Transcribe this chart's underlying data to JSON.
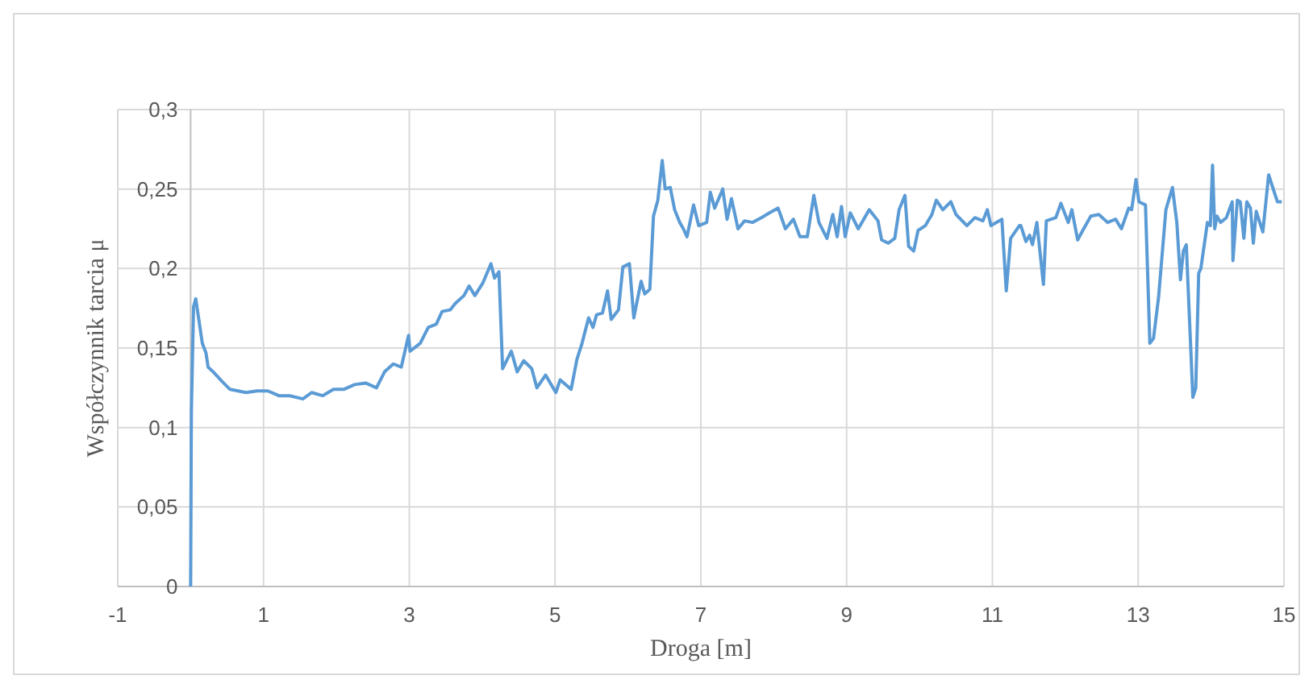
{
  "chart_data": {
    "type": "line",
    "xlabel": "Droga [m]",
    "ylabel": "Współczynnik tarcia μ",
    "xlim": [
      -1,
      15
    ],
    "xticks": [
      -1,
      1,
      3,
      5,
      7,
      9,
      11,
      13,
      15
    ],
    "ylim": [
      0,
      0.3
    ],
    "yticks": [
      {
        "value": 0,
        "label": "0"
      },
      {
        "value": 0.05,
        "label": "0,05"
      },
      {
        "value": 0.1,
        "label": "0,1"
      },
      {
        "value": 0.15,
        "label": "0,15"
      },
      {
        "value": 0.2,
        "label": "0,2"
      },
      {
        "value": 0.25,
        "label": "0,25"
      },
      {
        "value": 0.3,
        "label": "0,3"
      }
    ],
    "grid": true,
    "marker": "none",
    "line_style": "solid",
    "series": [
      {
        "color": "#5b9bd5",
        "x": [
          0,
          0.01,
          0.04,
          0.07,
          0.16,
          0.21,
          0.24,
          0.31,
          0.43,
          0.54,
          0.65,
          0.76,
          0.91,
          1.06,
          1.21,
          1.36,
          1.54,
          1.66,
          1.81,
          1.96,
          2.1,
          2.25,
          2.4,
          2.55,
          2.66,
          2.78,
          2.89,
          2.99,
          3.01,
          3.15,
          3.26,
          3.37,
          3.45,
          3.56,
          3.63,
          3.75,
          3.82,
          3.9,
          4.01,
          4.12,
          4.17,
          4.23,
          4.28,
          4.4,
          4.48,
          4.57,
          4.68,
          4.75,
          4.87,
          5.01,
          5.07,
          5.22,
          5.3,
          5.37,
          5.46,
          5.52,
          5.57,
          5.65,
          5.72,
          5.77,
          5.87,
          5.93,
          6.02,
          6.08,
          6.18,
          6.23,
          6.3,
          6.35,
          6.41,
          6.47,
          6.51,
          6.58,
          6.64,
          6.71,
          6.76,
          6.81,
          6.9,
          6.97,
          7.08,
          7.13,
          7.19,
          7.3,
          7.36,
          7.42,
          7.51,
          7.6,
          7.71,
          7.83,
          7.94,
          8.06,
          8.16,
          8.27,
          8.36,
          8.46,
          8.55,
          8.62,
          8.73,
          8.81,
          8.87,
          8.93,
          8.98,
          9.05,
          9.16,
          9.31,
          9.43,
          9.48,
          9.57,
          9.66,
          9.72,
          9.8,
          9.85,
          9.92,
          9.98,
          10.08,
          10.17,
          10.23,
          10.32,
          10.43,
          10.5,
          10.65,
          10.76,
          10.87,
          10.93,
          10.98,
          11.13,
          11.19,
          11.25,
          11.37,
          11.39,
          11.46,
          11.51,
          11.55,
          11.61,
          11.7,
          11.74,
          11.87,
          11.94,
          12.04,
          12.09,
          12.17,
          12.24,
          12.35,
          12.46,
          12.58,
          12.69,
          12.77,
          12.87,
          12.91,
          12.97,
          13.01,
          13.1,
          13.16,
          13.21,
          13.28,
          13.38,
          13.47,
          13.53,
          13.58,
          13.62,
          13.66,
          13.75,
          13.79,
          13.83,
          13.86,
          13.95,
          13.99,
          14.02,
          14.05,
          14.08,
          14.13,
          14.21,
          14.29,
          14.3,
          14.36,
          14.4,
          14.45,
          14.49,
          14.54,
          14.58,
          14.62,
          14.71,
          14.79,
          14.86,
          14.91,
          14.97
        ],
        "values": [
          0,
          0.11,
          0.176,
          0.181,
          0.153,
          0.147,
          0.138,
          0.135,
          0.129,
          0.124,
          0.123,
          0.122,
          0.123,
          0.123,
          0.12,
          0.12,
          0.118,
          0.122,
          0.12,
          0.124,
          0.124,
          0.127,
          0.128,
          0.125,
          0.135,
          0.14,
          0.138,
          0.158,
          0.148,
          0.153,
          0.163,
          0.165,
          0.173,
          0.174,
          0.178,
          0.183,
          0.189,
          0.183,
          0.191,
          0.203,
          0.194,
          0.198,
          0.137,
          0.148,
          0.135,
          0.142,
          0.137,
          0.125,
          0.133,
          0.122,
          0.13,
          0.124,
          0.143,
          0.153,
          0.169,
          0.163,
          0.171,
          0.172,
          0.186,
          0.168,
          0.174,
          0.201,
          0.203,
          0.169,
          0.192,
          0.184,
          0.187,
          0.233,
          0.243,
          0.268,
          0.25,
          0.251,
          0.237,
          0.229,
          0.225,
          0.22,
          0.24,
          0.227,
          0.229,
          0.248,
          0.238,
          0.25,
          0.231,
          0.244,
          0.225,
          0.23,
          0.229,
          0.232,
          0.235,
          0.238,
          0.225,
          0.231,
          0.22,
          0.22,
          0.246,
          0.229,
          0.219,
          0.234,
          0.22,
          0.239,
          0.22,
          0.235,
          0.225,
          0.237,
          0.23,
          0.218,
          0.216,
          0.219,
          0.237,
          0.246,
          0.214,
          0.211,
          0.224,
          0.227,
          0.234,
          0.243,
          0.237,
          0.242,
          0.234,
          0.227,
          0.232,
          0.23,
          0.237,
          0.227,
          0.231,
          0.186,
          0.219,
          0.227,
          0.227,
          0.217,
          0.221,
          0.215,
          0.229,
          0.19,
          0.23,
          0.232,
          0.241,
          0.229,
          0.237,
          0.218,
          0.224,
          0.233,
          0.234,
          0.229,
          0.231,
          0.225,
          0.238,
          0.237,
          0.256,
          0.242,
          0.24,
          0.153,
          0.156,
          0.182,
          0.237,
          0.251,
          0.229,
          0.193,
          0.211,
          0.215,
          0.119,
          0.125,
          0.197,
          0.2,
          0.229,
          0.227,
          0.265,
          0.225,
          0.233,
          0.229,
          0.232,
          0.242,
          0.205,
          0.243,
          0.242,
          0.219,
          0.242,
          0.238,
          0.216,
          0.236,
          0.223,
          0.259,
          0.249,
          0.242,
          0.242
        ]
      }
    ]
  }
}
